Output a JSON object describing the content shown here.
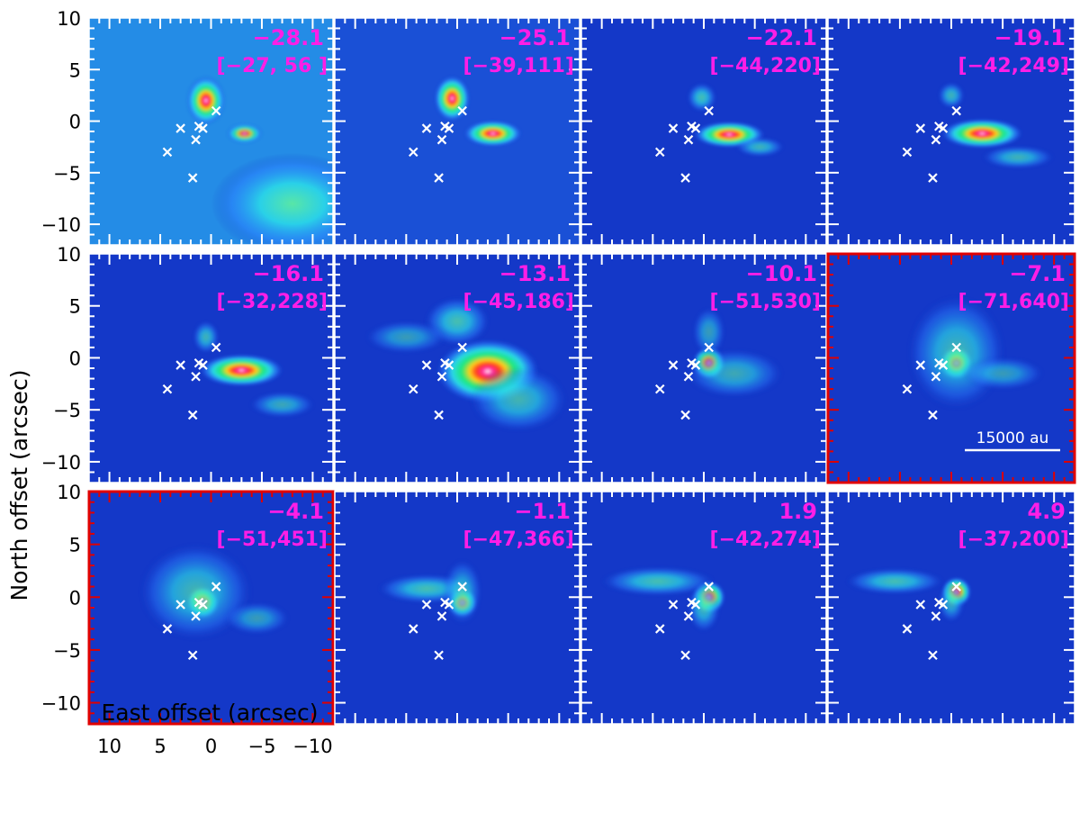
{
  "colors": {
    "label": "#ff1ee6",
    "highlight_frame": "#e00000",
    "frame": "#ffffff",
    "marker": "#ffffff",
    "background": "#1438c8"
  },
  "chart_data": {
    "type": "heatmap",
    "layout": "3x4 channel-map grid",
    "xlabel": "East offset (arcsec)",
    "ylabel": "North offset (arcsec)",
    "x_ticks": [
      "10",
      "5",
      "0",
      "−5",
      "−10"
    ],
    "y_ticks": [
      "10",
      "5",
      "0",
      "−5",
      "−10"
    ],
    "xlim": [
      12,
      -12
    ],
    "ylim": [
      -12,
      10
    ],
    "scale_bar": {
      "label": "15000 au",
      "panel": 7
    },
    "markers": [
      {
        "x": -0.5,
        "y": 1.0
      },
      {
        "x": 1.2,
        "y": -0.5
      },
      {
        "x": 0.8,
        "y": -0.7
      },
      {
        "x": 3.0,
        "y": -0.7
      },
      {
        "x": 1.5,
        "y": -1.8
      },
      {
        "x": 4.3,
        "y": -3.0
      },
      {
        "x": 1.8,
        "y": -5.5
      }
    ],
    "panels": [
      {
        "velocity": "−28.1",
        "range": "[−27, 56 ]",
        "highlight": false,
        "blobs": [
          {
            "x": 0.5,
            "y": 2.0,
            "rx": 1.2,
            "ry": 1.5,
            "amp": 1.0
          },
          {
            "x": -3.3,
            "y": -1.2,
            "rx": 1.1,
            "ry": 0.6,
            "amp": 0.8
          }
        ]
      },
      {
        "velocity": "−25.1",
        "range": "[−39,111]",
        "highlight": false,
        "blobs": [
          {
            "x": 0.5,
            "y": 2.2,
            "rx": 1.1,
            "ry": 1.4,
            "amp": 1.0
          },
          {
            "x": -3.5,
            "y": -1.2,
            "rx": 1.8,
            "ry": 0.8,
            "amp": 1.0
          }
        ]
      },
      {
        "velocity": "−22.1",
        "range": "[−44,220]",
        "highlight": false,
        "blobs": [
          {
            "x": 0.2,
            "y": 2.3,
            "rx": 0.9,
            "ry": 0.9,
            "amp": 0.6
          },
          {
            "x": -2.5,
            "y": -1.3,
            "rx": 2.2,
            "ry": 0.8,
            "amp": 1.0
          },
          {
            "x": -5.5,
            "y": -2.5,
            "rx": 1.5,
            "ry": 0.6,
            "amp": 0.5
          }
        ]
      },
      {
        "velocity": "−19.1",
        "range": "[−42,249]",
        "highlight": false,
        "blobs": [
          {
            "x": 0.0,
            "y": 2.5,
            "rx": 0.8,
            "ry": 0.8,
            "amp": 0.5
          },
          {
            "x": -3.0,
            "y": -1.2,
            "rx": 2.5,
            "ry": 0.9,
            "amp": 1.0
          },
          {
            "x": -6.5,
            "y": -3.5,
            "rx": 2.2,
            "ry": 0.7,
            "amp": 0.5
          }
        ]
      },
      {
        "velocity": "−16.1",
        "range": "[−32,228]",
        "highlight": false,
        "blobs": [
          {
            "x": 0.5,
            "y": 2.0,
            "rx": 0.8,
            "ry": 1.0,
            "amp": 0.5
          },
          {
            "x": -3.0,
            "y": -1.2,
            "rx": 2.6,
            "ry": 1.0,
            "amp": 1.0
          },
          {
            "x": -7.0,
            "y": -4.5,
            "rx": 2.0,
            "ry": 0.8,
            "amp": 0.4
          }
        ]
      },
      {
        "velocity": "−13.1",
        "range": "[−45,186]",
        "highlight": false,
        "blobs": [
          {
            "x": 0.0,
            "y": 3.5,
            "rx": 2.0,
            "ry": 1.5,
            "amp": 0.6
          },
          {
            "x": -3.0,
            "y": -1.3,
            "rx": 3.2,
            "ry": 2.0,
            "amp": 1.0
          },
          {
            "x": -6.0,
            "y": -4.0,
            "rx": 3.0,
            "ry": 2.0,
            "amp": 0.5
          },
          {
            "x": 5.0,
            "y": 2.0,
            "rx": 2.5,
            "ry": 1.0,
            "amp": 0.3
          }
        ]
      },
      {
        "velocity": "−10.1",
        "range": "[−51,530]",
        "highlight": false,
        "blobs": [
          {
            "x": -0.5,
            "y": -0.5,
            "rx": 1.0,
            "ry": 1.0,
            "amp": 1.0
          },
          {
            "x": -3.0,
            "y": -1.5,
            "rx": 3.0,
            "ry": 1.5,
            "amp": 0.4
          },
          {
            "x": -0.5,
            "y": 2.5,
            "rx": 1.0,
            "ry": 1.5,
            "amp": 0.3
          }
        ]
      },
      {
        "velocity": "−7.1",
        "range": "[−71,640]",
        "highlight": true,
        "blobs": [
          {
            "x": -0.5,
            "y": -0.5,
            "rx": 1.0,
            "ry": 1.0,
            "amp": 1.0
          },
          {
            "x": -0.5,
            "y": 0.5,
            "rx": 3.0,
            "ry": 3.5,
            "amp": 0.5
          },
          {
            "x": -5.0,
            "y": -1.5,
            "rx": 2.5,
            "ry": 1.0,
            "amp": 0.3
          }
        ]
      },
      {
        "velocity": "−4.1",
        "range": "[−51,451]",
        "highlight": true,
        "blobs": [
          {
            "x": 0.8,
            "y": -0.5,
            "rx": 1.0,
            "ry": 1.0,
            "amp": 1.0
          },
          {
            "x": 1.5,
            "y": 0.5,
            "rx": 3.5,
            "ry": 3.0,
            "amp": 0.5
          },
          {
            "x": -4.5,
            "y": -2.0,
            "rx": 2.0,
            "ry": 1.0,
            "amp": 0.3
          }
        ]
      },
      {
        "velocity": "−1.1",
        "range": "[−47,366]",
        "highlight": false,
        "blobs": [
          {
            "x": -0.5,
            "y": -0.5,
            "rx": 0.9,
            "ry": 0.9,
            "amp": 1.0
          },
          {
            "x": 3.0,
            "y": 0.8,
            "rx": 3.0,
            "ry": 0.9,
            "amp": 0.6
          },
          {
            "x": -0.5,
            "y": 0.5,
            "rx": 1.2,
            "ry": 2.0,
            "amp": 0.4
          }
        ]
      },
      {
        "velocity": "1.9",
        "range": "[−42,274]",
        "highlight": false,
        "blobs": [
          {
            "x": -0.5,
            "y": 0.0,
            "rx": 1.0,
            "ry": 1.0,
            "amp": 1.0
          },
          {
            "x": 4.5,
            "y": 1.5,
            "rx": 3.5,
            "ry": 0.9,
            "amp": 0.6
          },
          {
            "x": 0.0,
            "y": -1.0,
            "rx": 1.0,
            "ry": 1.5,
            "amp": 0.5
          }
        ]
      },
      {
        "velocity": "4.9",
        "range": "[−37,200]",
        "highlight": false,
        "blobs": [
          {
            "x": -0.5,
            "y": 0.5,
            "rx": 0.9,
            "ry": 0.9,
            "amp": 1.0
          },
          {
            "x": 5.5,
            "y": 1.5,
            "rx": 3.0,
            "ry": 0.8,
            "amp": 0.6
          },
          {
            "x": 0.0,
            "y": -0.5,
            "rx": 0.8,
            "ry": 1.2,
            "amp": 0.4
          }
        ]
      }
    ]
  }
}
